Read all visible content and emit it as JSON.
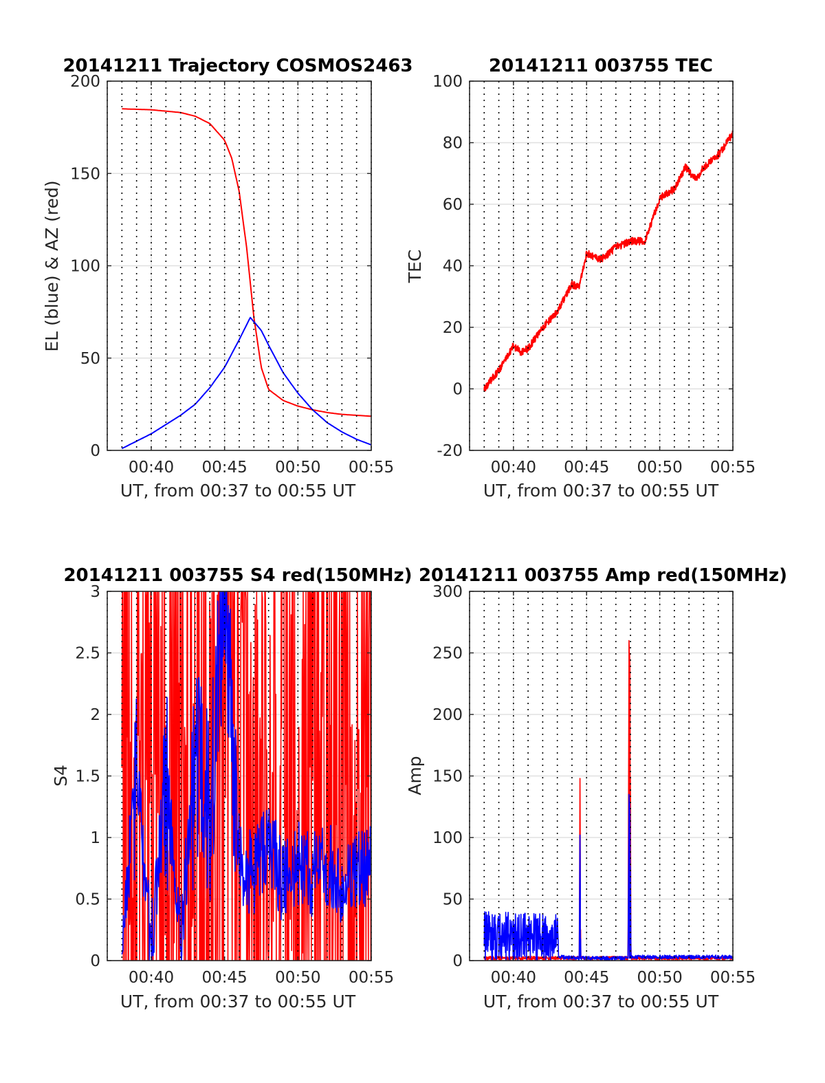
{
  "figure": {
    "xlabel_common": "UT, from 00:37 to 00:55 UT"
  },
  "chart_data": [
    {
      "id": "trajectory",
      "type": "line",
      "title": "20141211 Trajectory COSMOS2463",
      "xlabel": "UT, from 00:37 to 00:55 UT",
      "ylabel": "EL (blue) & AZ (red)",
      "xlim": [
        "00:37",
        "00:55"
      ],
      "ylim": [
        0,
        200
      ],
      "xticks": [
        "00:40",
        "00:45",
        "00:50",
        "00:55"
      ],
      "yticks": [
        0,
        50,
        100,
        150,
        200
      ],
      "grid": true,
      "series": [
        {
          "color": "#ff0000",
          "kind": "azimuth",
          "x": [
            "00:38",
            "00:40",
            "00:42",
            "00:43",
            "00:44",
            "00:45",
            "00:45:30",
            "00:46",
            "00:46:30",
            "00:47",
            "00:47:30",
            "00:48",
            "00:49",
            "00:50",
            "00:51",
            "00:52",
            "00:53",
            "00:54",
            "00:55"
          ],
          "y": [
            185,
            184.5,
            183,
            181,
            177,
            168,
            158,
            140,
            110,
            72,
            45,
            33,
            27,
            24,
            22,
            20.5,
            19.5,
            19,
            18.5
          ]
        },
        {
          "color": "#0000ff",
          "kind": "elevation",
          "x": [
            "00:38",
            "00:39",
            "00:40",
            "00:41",
            "00:42",
            "00:43",
            "00:44",
            "00:45",
            "00:46",
            "00:46:45",
            "00:47:30",
            "00:48",
            "00:49",
            "00:50",
            "00:51",
            "00:52",
            "00:53",
            "00:54",
            "00:55"
          ],
          "y": [
            1,
            5,
            9,
            14,
            19,
            25,
            34,
            45,
            60,
            72,
            65,
            57,
            42,
            31,
            22,
            15,
            10,
            6,
            3
          ]
        }
      ]
    },
    {
      "id": "tec",
      "type": "line",
      "title": "20141211 003755 TEC",
      "xlabel": "UT, from 00:37 to 00:55 UT",
      "ylabel": "TEC",
      "xlim": [
        "00:37",
        "00:55"
      ],
      "ylim": [
        -20,
        100
      ],
      "xticks": [
        "00:40",
        "00:45",
        "00:50",
        "00:55"
      ],
      "yticks": [
        -20,
        0,
        20,
        40,
        60,
        80,
        100
      ],
      "grid": true,
      "series": [
        {
          "color": "#ff0000",
          "x": [
            "00:38",
            "00:39",
            "00:39:30",
            "00:40",
            "00:40:30",
            "00:41",
            "00:42",
            "00:43",
            "00:44",
            "00:44:30",
            "00:45",
            "00:46",
            "00:47",
            "00:48",
            "00:49",
            "00:50",
            "00:51",
            "00:51:45",
            "00:52:30",
            "00:53",
            "00:54",
            "00:55"
          ],
          "y": [
            0,
            6,
            10,
            14,
            12,
            13,
            20,
            25,
            34,
            33,
            44,
            42,
            46,
            48,
            48,
            62,
            65,
            72,
            68,
            72,
            76,
            83
          ]
        }
      ]
    },
    {
      "id": "s4",
      "type": "line",
      "title": "20141211 003755 S4 red(150MHz)",
      "xlabel": "UT, from 00:37 to 00:55 UT",
      "ylabel": "S4",
      "xlim": [
        "00:37",
        "00:55"
      ],
      "ylim": [
        0,
        3
      ],
      "xticks": [
        "00:40",
        "00:45",
        "00:50",
        "00:55"
      ],
      "yticks": [
        0,
        0.5,
        1,
        1.5,
        2,
        2.5,
        3
      ],
      "grid": true,
      "series": [
        {
          "color": "#ff0000",
          "x": [
            "00:38",
            "00:39",
            "00:40",
            "00:41",
            "00:42",
            "00:43",
            "00:44",
            "00:45",
            "00:46",
            "00:47",
            "00:48",
            "00:49",
            "00:50",
            "00:51",
            "00:52",
            "00:53",
            "00:54",
            "00:55"
          ],
          "y": [
            3,
            0,
            3,
            0.3,
            3,
            0.2,
            1.6,
            3,
            2.6,
            1.5,
            1,
            3,
            0,
            3,
            0,
            3,
            0,
            3
          ]
        },
        {
          "color": "#0000ff",
          "x": [
            "00:38",
            "00:39",
            "00:40",
            "00:41",
            "00:42",
            "00:43",
            "00:44",
            "00:45",
            "00:46",
            "00:47",
            "00:48",
            "00:49",
            "00:50",
            "00:51",
            "00:52",
            "00:53",
            "00:54",
            "00:55"
          ],
          "y": [
            0.2,
            1.5,
            0.1,
            1.5,
            0.2,
            1.6,
            1.2,
            3,
            0.8,
            0.7,
            1,
            0.6,
            0.8,
            0.7,
            0.8,
            0.6,
            0.7,
            0.8
          ]
        }
      ]
    },
    {
      "id": "amp",
      "type": "line",
      "title": "20141211 003755 Amp red(150MHz)",
      "xlabel": "UT, from 00:37 to 00:55 UT",
      "ylabel": "Amp",
      "xlim": [
        "00:37",
        "00:55"
      ],
      "ylim": [
        0,
        300
      ],
      "xticks": [
        "00:40",
        "00:45",
        "00:50",
        "00:55"
      ],
      "yticks": [
        0,
        50,
        100,
        150,
        200,
        250,
        300
      ],
      "grid": true,
      "series": [
        {
          "color": "#ff0000",
          "x": [
            "00:38",
            "00:43",
            "00:44:30",
            "00:44:33",
            "00:44:36",
            "00:47:50",
            "00:47:54",
            "00:47:58",
            "00:48:02",
            "00:55"
          ],
          "y": [
            2,
            2,
            2,
            148,
            2,
            2,
            260,
            240,
            2,
            2
          ]
        },
        {
          "color": "#0000ff",
          "x": [
            "00:38",
            "00:43",
            "00:43:05",
            "00:44:30",
            "00:44:33",
            "00:44:36",
            "00:47:50",
            "00:47:54",
            "00:47:58",
            "00:48:02",
            "00:55"
          ],
          "y": [
            40,
            38,
            3,
            2,
            102,
            2,
            2,
            135,
            120,
            3,
            3
          ]
        }
      ]
    }
  ]
}
